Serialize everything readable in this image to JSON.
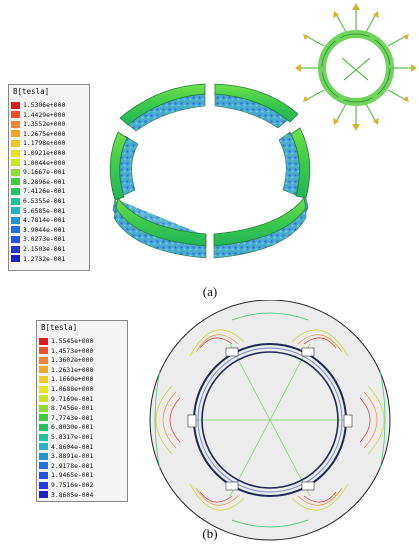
{
  "panel_a": {
    "legend_title": "B[tesla]",
    "legend_values": [
      "1.5306e+000",
      "1.4429e+000",
      "1.3552e+000",
      "1.2675e+000",
      "1.1798e+000",
      "1.0921e+000",
      "1.0044e+000",
      "9.1667e-001",
      "8.2896e-001",
      "7.4126e-001",
      "6.5355e-001",
      "5.6585e-001",
      "4.7814e-001",
      "3.9044e-001",
      "3.0273e-001",
      "2.1503e-001",
      "1.2732e-001"
    ],
    "caption": "(a)"
  },
  "panel_b": {
    "legend_title": "B[tesla]",
    "legend_values": [
      "1.5545e+000",
      "1.4573e+000",
      "1.3602e+000",
      "1.2631e+000",
      "1.1660e+000",
      "1.0688e+000",
      "9.7169e-001",
      "8.7456e-001",
      "7.7743e-001",
      "6.8030e-001",
      "5.8317e-001",
      "4.8604e-001",
      "3.8891e-001",
      "2.9178e-001",
      "1.9465e-001",
      "9.7516e-002",
      "3.8605e-004"
    ],
    "caption": "(b)"
  },
  "colors": [
    "#e31a1c",
    "#f0502b",
    "#f48530",
    "#f5a623",
    "#f2c81e",
    "#e8e21d",
    "#c9e61f",
    "#8fdd2b",
    "#3fce3a",
    "#22c565",
    "#1fc59a",
    "#1fb7c5",
    "#1f95d6",
    "#2171e0",
    "#2355e4",
    "#2538df",
    "#2020c8"
  ]
}
